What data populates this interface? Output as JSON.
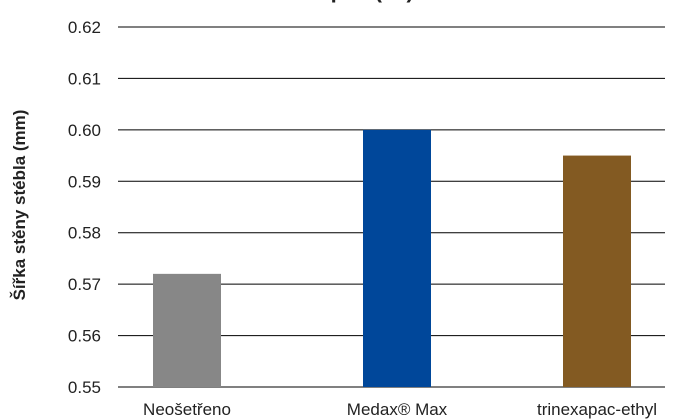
{
  "chart_data": {
    "type": "bar",
    "title": "... p ... (... )",
    "ylabel": "Šířka stěny stébla (mm)",
    "xlabel": "",
    "categories": [
      "Neošetřeno",
      "Medax® Max",
      "trinexapac-ethyl"
    ],
    "values": [
      0.572,
      0.6,
      0.595
    ],
    "colors": [
      "#878787",
      "#00479a",
      "#835a22"
    ],
    "ylim": [
      0.55,
      0.62
    ],
    "yticks": [
      "0.55",
      "0.56",
      "0.57",
      "0.58",
      "0.59",
      "0.60",
      "0.61",
      "0.62"
    ],
    "grid": true,
    "legend": "none"
  }
}
